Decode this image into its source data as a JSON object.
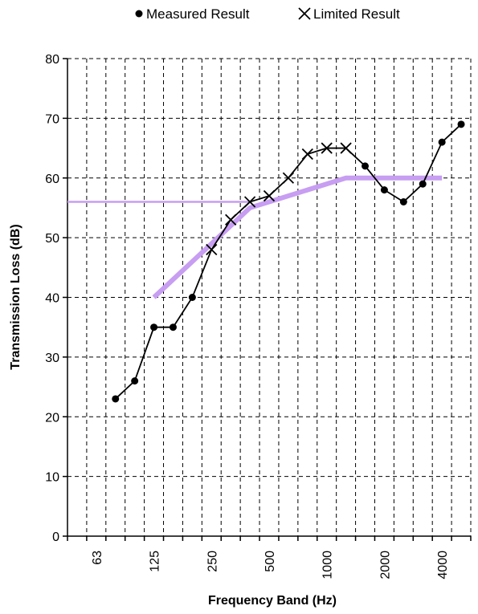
{
  "chart_data": {
    "type": "line",
    "title": "",
    "xlabel": "Frequency Band (Hz)",
    "ylabel": "Transmission Loss (dB)",
    "ylim": [
      0,
      80
    ],
    "yticks": [
      "0",
      "10",
      "20",
      "30",
      "40",
      "50",
      "60",
      "70",
      "80"
    ],
    "x_bands_hz": [
      "50",
      "63",
      "80",
      "100",
      "125",
      "160",
      "200",
      "250",
      "315",
      "400",
      "500",
      "630",
      "800",
      "1000",
      "1250",
      "1600",
      "2000",
      "2500",
      "3150",
      "4000",
      "5000"
    ],
    "x_tick_labels": [
      "63",
      "125",
      "250",
      "500",
      "1000",
      "2000",
      "4000"
    ],
    "grid": true,
    "legend_position": "top",
    "legend": [
      {
        "label": "Measured Result",
        "marker": "circle"
      },
      {
        "label": "Limited Result",
        "marker": "x"
      }
    ],
    "series": [
      {
        "name": "Measured Result",
        "marker": "circle",
        "color": "#000000",
        "points": [
          {
            "band": "80",
            "value": 23
          },
          {
            "band": "100",
            "value": 26
          },
          {
            "band": "125",
            "value": 35
          },
          {
            "band": "160",
            "value": 35
          },
          {
            "band": "200",
            "value": 40
          },
          {
            "band": "1600",
            "value": 62
          },
          {
            "band": "2000",
            "value": 58
          },
          {
            "band": "2500",
            "value": 56
          },
          {
            "band": "3150",
            "value": 59
          },
          {
            "band": "4000",
            "value": 66
          },
          {
            "band": "5000",
            "value": 69
          }
        ]
      },
      {
        "name": "Limited Result",
        "marker": "x",
        "color": "#000000",
        "points": [
          {
            "band": "250",
            "value": 48
          },
          {
            "band": "315",
            "value": 53
          },
          {
            "band": "400",
            "value": 56
          },
          {
            "band": "500",
            "value": 57
          },
          {
            "band": "630",
            "value": 60
          },
          {
            "band": "800",
            "value": 64
          },
          {
            "band": "1000",
            "value": 65
          },
          {
            "band": "1250",
            "value": 65
          }
        ]
      }
    ],
    "reference_curve": {
      "color": "#c79ef2",
      "flat_line": {
        "value": 56,
        "to_band": "400"
      },
      "points": [
        {
          "band": "125",
          "value": 40
        },
        {
          "band": "400",
          "value": 55
        },
        {
          "band": "1250",
          "value": 60
        },
        {
          "band": "4000",
          "value": 60
        }
      ]
    }
  }
}
